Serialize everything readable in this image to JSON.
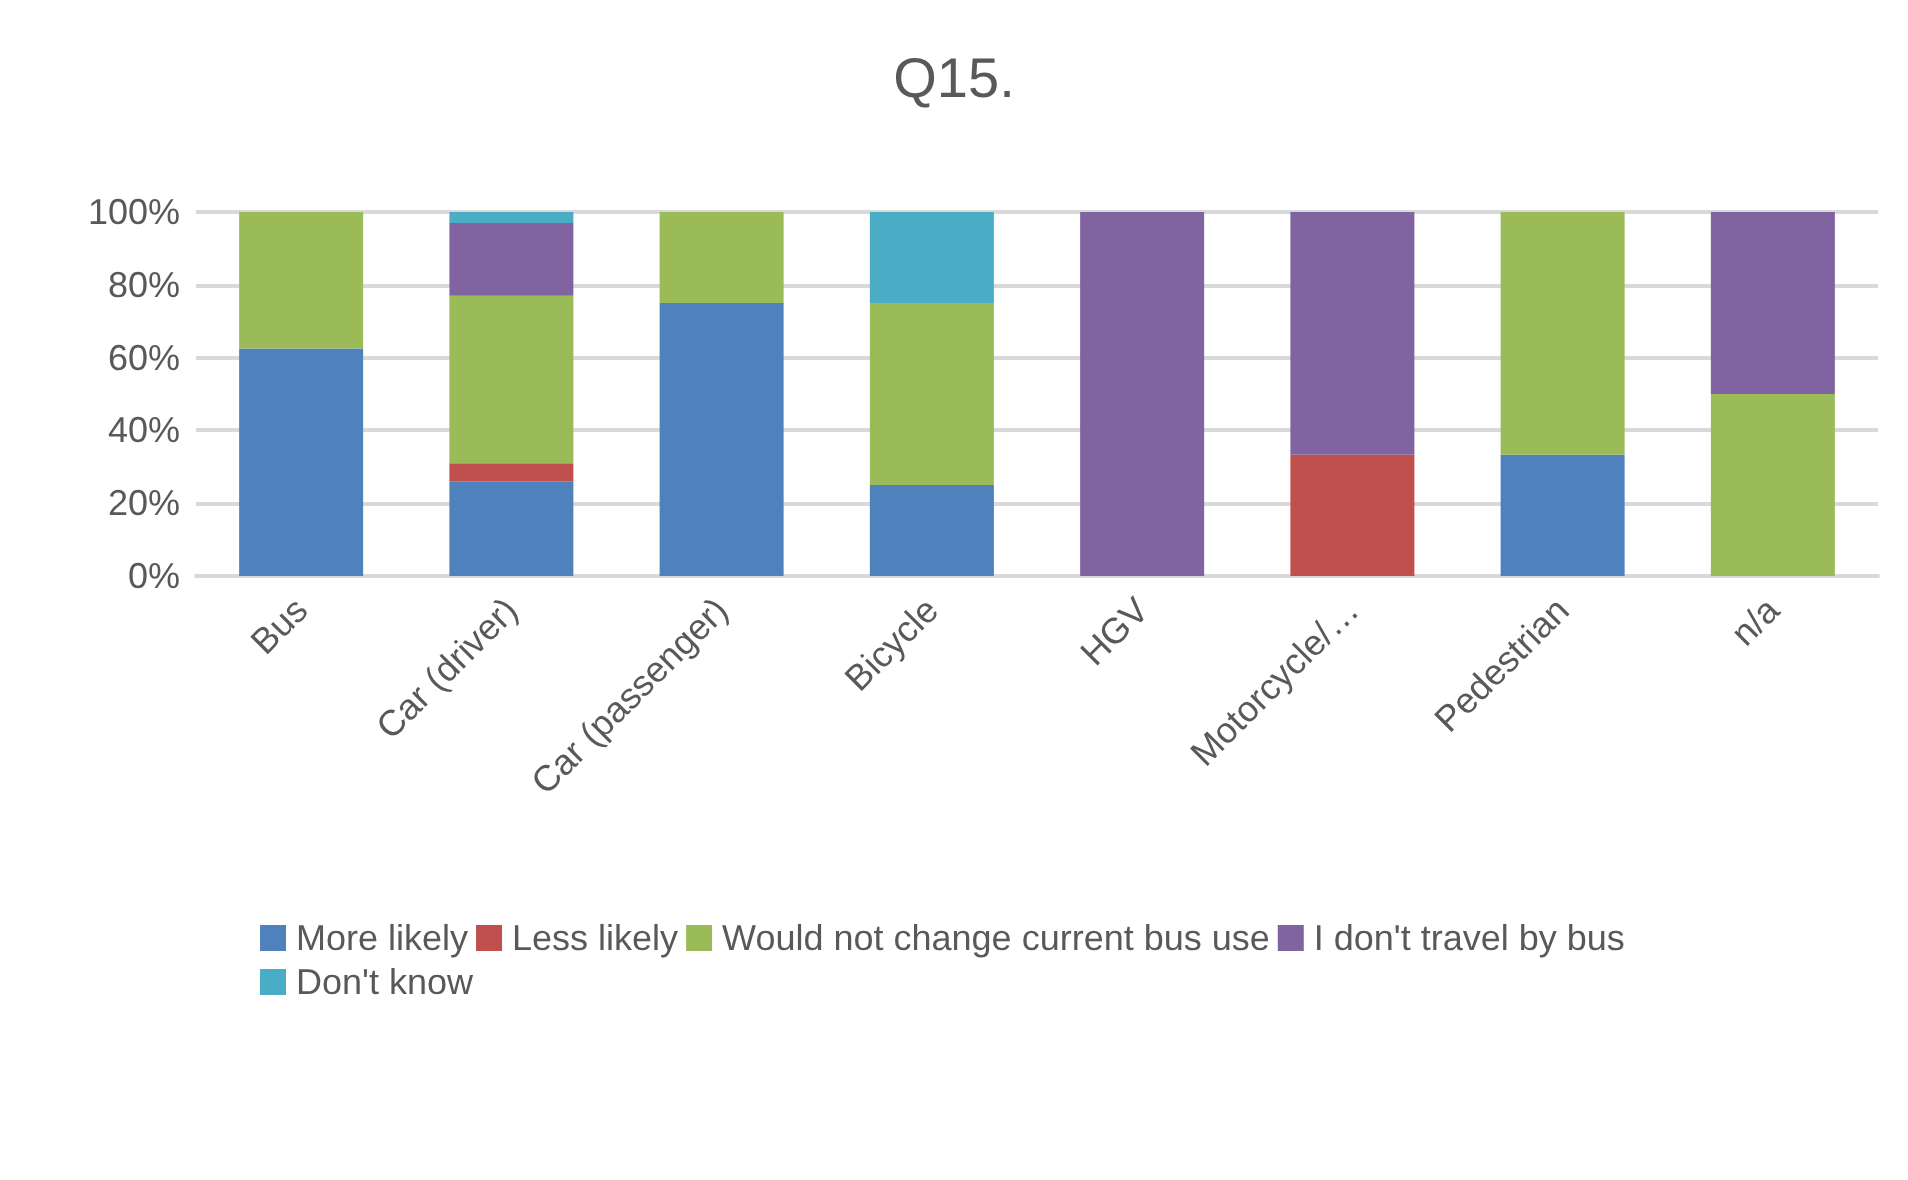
{
  "chart_data": {
    "type": "bar",
    "title": "Q15.",
    "stacked": true,
    "categories": [
      "Bus",
      "Car (driver)",
      "Car (passenger)",
      "Bicycle",
      "HGV",
      "Motorcycle/…",
      "Pedestrian",
      "n/a"
    ],
    "series": [
      {
        "name": "More likely",
        "color": "#4f81bd",
        "values": [
          62.5,
          26,
          75,
          25,
          0,
          0,
          33.3,
          0
        ]
      },
      {
        "name": "Less likely",
        "color": "#c0504d",
        "values": [
          0,
          5,
          0,
          0,
          0,
          33.3,
          0,
          0
        ]
      },
      {
        "name": "Would not change current bus use",
        "color": "#9bbb59",
        "values": [
          37.5,
          46,
          25,
          50,
          0,
          0,
          66.7,
          50
        ]
      },
      {
        "name": "I don't travel by bus",
        "color": "#8064a2",
        "values": [
          0,
          20,
          0,
          0,
          100,
          66.7,
          0,
          50
        ]
      },
      {
        "name": "Don't know",
        "color": "#4bacc6",
        "values": [
          0,
          3,
          0,
          25,
          0,
          0,
          0,
          0
        ]
      }
    ],
    "ylim": [
      0,
      100
    ],
    "yticks": [
      {
        "value": 0,
        "label": "0%"
      },
      {
        "value": 20,
        "label": "20%"
      },
      {
        "value": 40,
        "label": "40%"
      },
      {
        "value": 60,
        "label": "60%"
      },
      {
        "value": 80,
        "label": "80%"
      },
      {
        "value": 100,
        "label": "100%"
      }
    ],
    "grid": "y",
    "legend": "bottom"
  }
}
